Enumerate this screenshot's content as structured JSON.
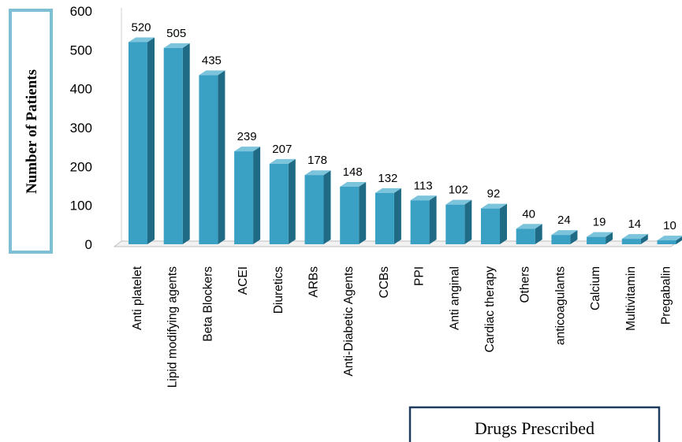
{
  "chart_data": {
    "type": "bar",
    "style": "3d-column",
    "ylabel": "Number of Patients",
    "xlabel": "Drugs Prescribed",
    "ylim": [
      0,
      600
    ],
    "yticks": [
      0,
      100,
      200,
      300,
      400,
      500,
      600
    ],
    "grid": false,
    "categories": [
      "Anti platelet",
      "Lipid modifying agents",
      "Beta Blockers",
      "ACEI",
      "Diuretics",
      "ARBs",
      "Anti-Diabetic Agents",
      "CCBs",
      "PPI",
      "Anti anginal",
      "Cardiac therapy",
      "Others",
      "anticoagulants",
      "Calcium",
      "Multivitamin",
      "Pregabalin"
    ],
    "values": [
      520,
      505,
      435,
      239,
      207,
      178,
      148,
      132,
      113,
      102,
      92,
      40,
      24,
      19,
      14,
      10
    ],
    "colors": {
      "bar_front": "#3aa0c4",
      "bar_side": "#1f6a85",
      "bar_top": "#7cc3dc",
      "ylabel_box": "#7fbfd6",
      "xlabel_box": "#1f3b5e"
    }
  }
}
